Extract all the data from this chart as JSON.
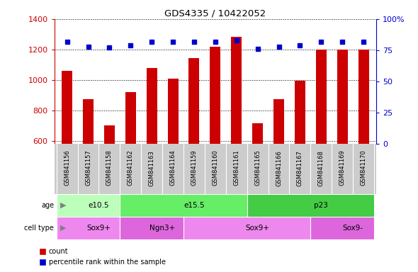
{
  "title": "GDS4335 / 10422052",
  "samples": [
    "GSM841156",
    "GSM841157",
    "GSM841158",
    "GSM841162",
    "GSM841163",
    "GSM841164",
    "GSM841159",
    "GSM841160",
    "GSM841161",
    "GSM841165",
    "GSM841166",
    "GSM841167",
    "GSM841168",
    "GSM841169",
    "GSM841170"
  ],
  "counts": [
    1060,
    875,
    700,
    920,
    1080,
    1010,
    1145,
    1220,
    1285,
    715,
    875,
    995,
    1200,
    1200,
    1200
  ],
  "percentiles": [
    82,
    78,
    77,
    79,
    82,
    82,
    82,
    82,
    83,
    76,
    78,
    79,
    82,
    82,
    82
  ],
  "ylim_left": [
    580,
    1400
  ],
  "ylim_right": [
    0,
    100
  ],
  "yticks_left": [
    600,
    800,
    1000,
    1200,
    1400
  ],
  "yticks_right": [
    0,
    25,
    50,
    75,
    100
  ],
  "bar_color": "#cc0000",
  "dot_color": "#0000cc",
  "age_groups": [
    {
      "label": "e10.5",
      "start": 0,
      "end": 3,
      "color": "#bbffbb"
    },
    {
      "label": "e15.5",
      "start": 3,
      "end": 9,
      "color": "#66ee66"
    },
    {
      "label": "p23",
      "start": 9,
      "end": 15,
      "color": "#44cc44"
    }
  ],
  "cell_groups": [
    {
      "label": "Sox9+",
      "start": 0,
      "end": 3,
      "color": "#ee88ee"
    },
    {
      "label": "Ngn3+",
      "start": 3,
      "end": 6,
      "color": "#dd66dd"
    },
    {
      "label": "Sox9+",
      "start": 6,
      "end": 12,
      "color": "#ee88ee"
    },
    {
      "label": "Sox9-",
      "start": 12,
      "end": 15,
      "color": "#dd66dd"
    }
  ],
  "legend_count_label": "count",
  "legend_pct_label": "percentile rank within the sample",
  "tick_bg_color": "#cccccc",
  "bar_width": 0.5,
  "xlim": [
    -0.6,
    14.6
  ]
}
